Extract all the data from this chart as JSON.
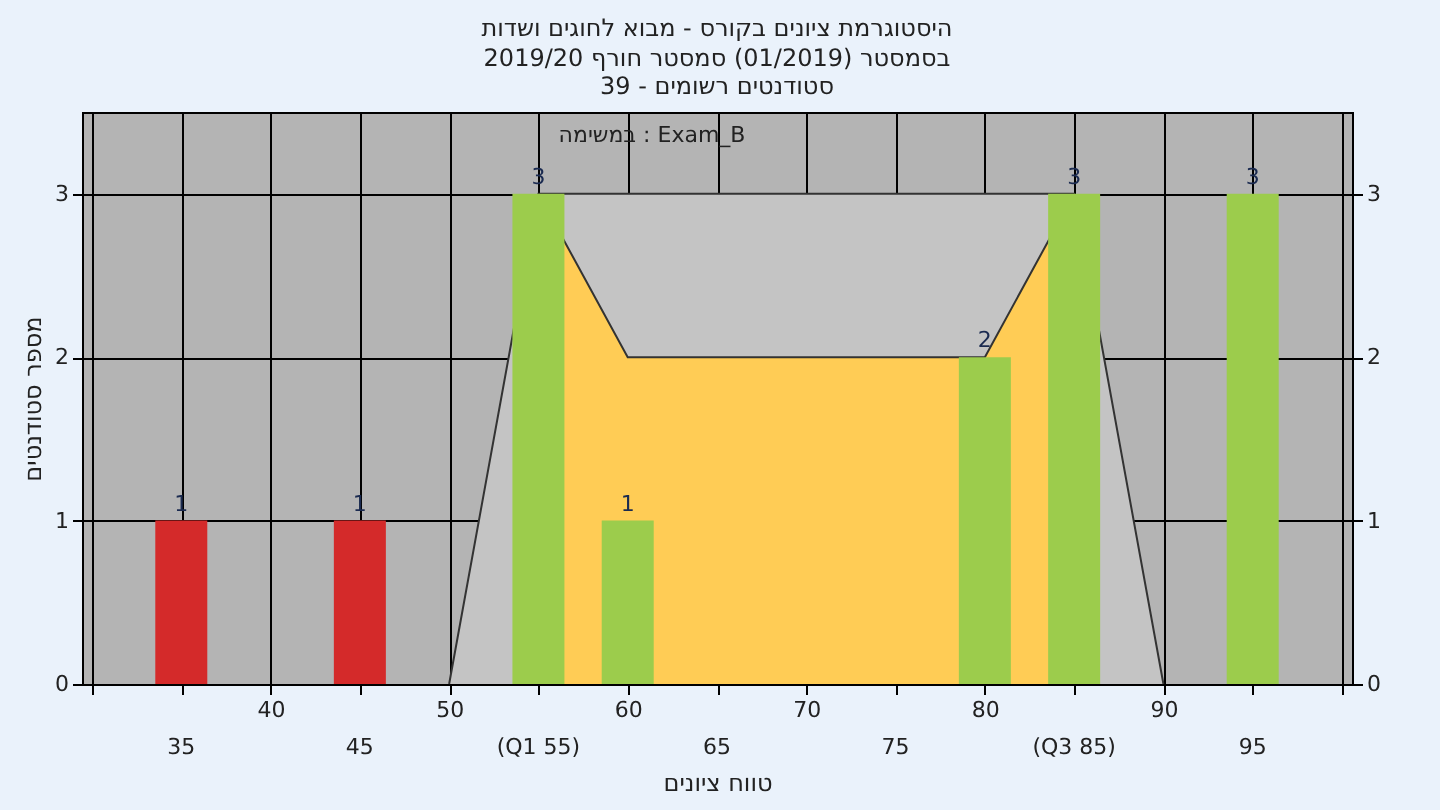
{
  "chart_data": {
    "type": "bar",
    "title": "היסטוגרמת ציונים בקורס - מבוא לחוגים ושדות",
    "subtitle": "בסמסטר (01/2019) סמסטר חורף 2019/20\nסטודנטים רשומים - 39",
    "xlabel": "טווח ציונים",
    "ylabel": "מספר סטודנטים",
    "annotations": [
      "במשימה : Exam_B",
      {
        "text": "35",
        "x": 35,
        "y": 0
      },
      {
        "text": "45",
        "x": 45,
        "y": 0
      },
      {
        "text": "(Q1 55)",
        "x": 55,
        "y": 0
      },
      {
        "text": "65",
        "x": 65,
        "y": 0
      },
      {
        "text": "75",
        "x": 75,
        "y": 0
      },
      {
        "text": "(Q3 85)",
        "x": 85,
        "y": 0
      },
      {
        "text": "95",
        "x": 95,
        "y": 0
      }
    ],
    "xlim": [
      30,
      100
    ],
    "xticks": [
      {
        "value": 30,
        "label": null
      },
      {
        "value": 35,
        "label": null
      },
      40,
      {
        "value": 45,
        "label": null
      },
      50,
      {
        "value": 55,
        "label": null
      },
      60,
      {
        "value": 65,
        "label": null
      },
      70,
      {
        "value": 75,
        "label": null
      },
      80,
      {
        "value": 85,
        "label": null
      },
      90,
      {
        "value": 95,
        "label": null
      },
      {
        "value": 100,
        "label": null
      }
    ],
    "ylim": [
      0,
      3.5
    ],
    "yticks": [
      0,
      1,
      2,
      3
    ],
    "y2lim": [
      0,
      3.5
    ],
    "y2ticks": [
      0,
      1,
      2,
      3
    ],
    "series": [
      {
        "type": "area",
        "color": "#c4c4c4",
        "x": [
          50,
          55,
          85,
          90
        ],
        "values": [
          0,
          3,
          3,
          0
        ]
      },
      {
        "type": "area",
        "color": "#ffcc55",
        "x": [
          55,
          60,
          80,
          85
        ],
        "values": [
          3,
          2,
          2,
          3
        ]
      },
      {
        "color": "#d42a2a",
        "x": [
          35,
          45
        ],
        "values": [
          1,
          1
        ],
        "value_labels": [
          "1",
          "1"
        ]
      },
      {
        "color": "#9ccc4c",
        "x": [
          55,
          60,
          80,
          85,
          95
        ],
        "values": [
          3,
          1,
          2,
          3,
          3
        ],
        "value_labels": [
          "3",
          "1",
          "2",
          "3",
          "3"
        ]
      }
    ],
    "grid": true
  }
}
